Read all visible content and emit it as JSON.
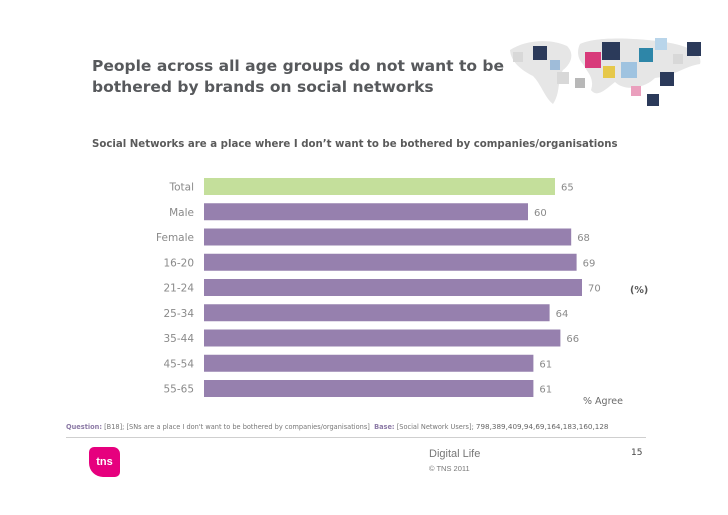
{
  "slide": {
    "title": "People across all age groups do not want to be bothered by brands on social networks",
    "subtitle": "Social Networks are a place where I don’t want to be bothered by companies/organisations",
    "unit_label": "(%)",
    "agree_label": "% Agree",
    "page_number": "15"
  },
  "footer": {
    "question_label": "Question:",
    "question_text": "[B18]; [SNs are a place I don't want to be bothered by companies/organisations]",
    "base_label": "Base:",
    "base_text": "[Social Network Users];",
    "base_values": "798,389,409,94,69,164,183,160,128",
    "brand_logo": "tns",
    "product": "Digital Life",
    "copyright": "© TNS 2011"
  },
  "colors": {
    "highlight": "#c4df9b",
    "bar": "#9680ae",
    "label": "#8a8a8a"
  },
  "chart_data": {
    "type": "bar",
    "orientation": "horizontal",
    "title": "Social Networks are a place where I don’t want to be bothered by companies/organisations",
    "xlabel": "% Agree",
    "ylabel": "",
    "xlim": [
      0,
      100
    ],
    "categories": [
      "Total",
      "Male",
      "Female",
      "16-20",
      "21-24",
      "25-34",
      "35-44",
      "45-54",
      "55-65"
    ],
    "values": [
      65,
      60,
      68,
      69,
      70,
      64,
      66,
      61,
      61
    ],
    "highlight_category": "Total"
  }
}
